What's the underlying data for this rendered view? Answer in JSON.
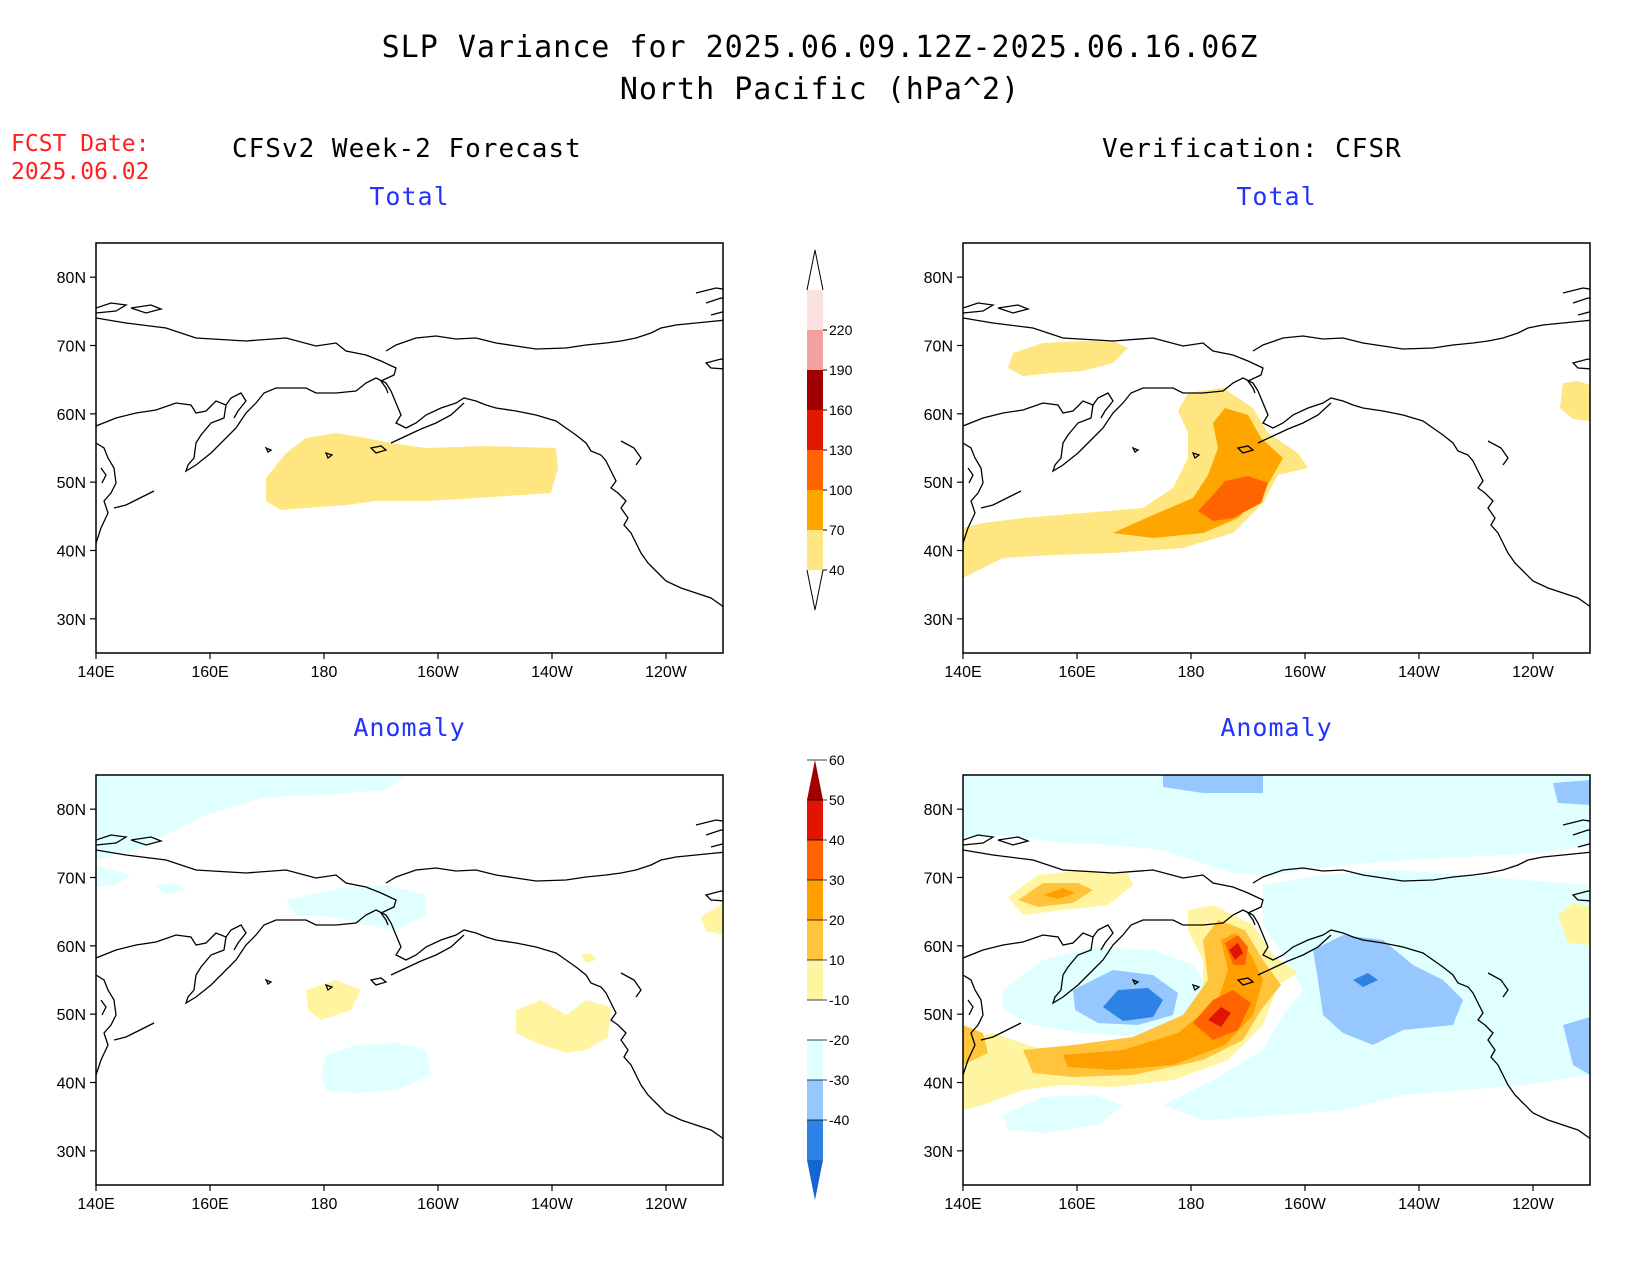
{
  "header": {
    "title_line1": "SLP Variance for 2025.06.09.12Z-2025.06.16.06Z",
    "title_line2": "North Pacific (hPa^2)",
    "fcst_label": "FCST Date:",
    "fcst_date": "2025.06.02"
  },
  "columns": {
    "left": "CFSv2 Week-2 Forecast",
    "right": "Verification: CFSR"
  },
  "panels": [
    {
      "id": "forecast-total",
      "title": "Total"
    },
    {
      "id": "verification-total",
      "title": "Total"
    },
    {
      "id": "forecast-anomaly",
      "title": "Anomaly"
    },
    {
      "id": "verification-anomaly",
      "title": "Anomaly"
    }
  ],
  "axes": {
    "lat_labels": [
      "80N",
      "70N",
      "60N",
      "50N",
      "40N",
      "30N"
    ],
    "lat_values": [
      80,
      70,
      60,
      50,
      40,
      30
    ],
    "lon_labels": [
      "140E",
      "160E",
      "180",
      "160W",
      "140W",
      "120W"
    ],
    "lon_values": [
      140,
      160,
      180,
      200,
      220,
      240
    ],
    "lon_range": [
      140,
      250
    ],
    "lat_range": [
      25,
      85
    ]
  },
  "colorbars": {
    "total": {
      "labels": [
        "40",
        "70",
        "100",
        "130",
        "160",
        "190",
        "220"
      ],
      "colors": [
        "#ffe680",
        "#ffa500",
        "#ff6400",
        "#e01800",
        "#a00000",
        "#f4a0a0",
        "#fde0e0"
      ]
    },
    "anomaly": {
      "labels": [
        "-40",
        "-30",
        "-20",
        "-10",
        "10",
        "20",
        "30",
        "40",
        "50",
        "60"
      ],
      "colors": [
        "#1464d2",
        "#2d82e6",
        "#96c8ff",
        "#e0ffff",
        "#ffffff",
        "#fff5a0",
        "#ffc43c",
        "#ffa000",
        "#ff6400",
        "#e01400",
        "#a00000"
      ]
    }
  },
  "colors": {
    "title_blue": "#2233ff",
    "fcst_red": "#ff2020"
  }
}
